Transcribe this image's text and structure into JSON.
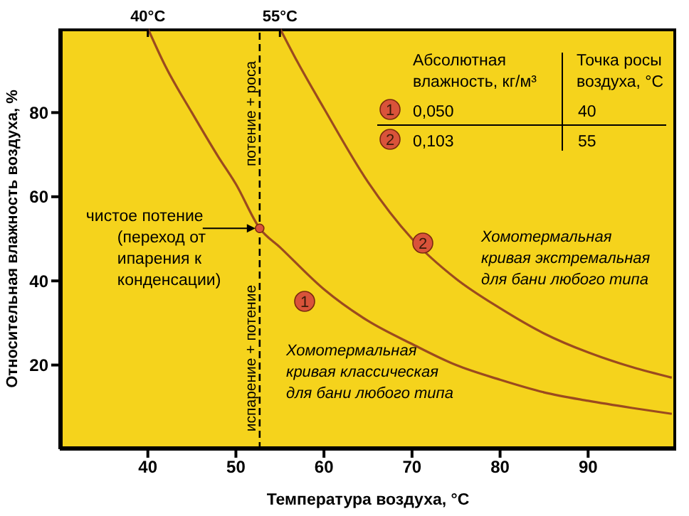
{
  "chart_data": {
    "type": "line",
    "xlabel": "Температура воздуха, °C",
    "ylabel": "Относительная влажность воздуха, %",
    "xlim": [
      30,
      100
    ],
    "xticks": [
      40,
      50,
      60,
      70,
      80,
      90
    ],
    "ylim": [
      0,
      100
    ],
    "yticks": [
      20,
      40,
      60,
      80
    ],
    "x2lim": [
      30,
      100
    ],
    "x2ticks": [
      {
        "value": 40,
        "label": "40°C"
      },
      {
        "value": 55,
        "label": "55°C"
      }
    ],
    "tick_labels": "xy",
    "series": [
      {
        "name": "Хомотермальная\nкривая классическая\nдля бани любого типа",
        "color": "#9b4a1f",
        "x": [
          40,
          42,
          45,
          48,
          50,
          52.7,
          55,
          60,
          65,
          70,
          75,
          80,
          85,
          90,
          95,
          99.5
        ],
        "values": [
          100,
          91,
          80,
          69.5,
          63,
          52.5,
          48,
          38,
          30.5,
          25,
          20,
          16.5,
          13.5,
          11.5,
          9.8,
          8.4
        ]
      },
      {
        "name": "Хомотермальная\nкривая экстремальная\nдля бани любого типа",
        "color": "#9b4a1f",
        "x": [
          55,
          57,
          60,
          65,
          70,
          75,
          80,
          85,
          90,
          95,
          99.5
        ],
        "values": [
          100,
          92,
          81,
          63.5,
          50,
          40.5,
          33.5,
          27.5,
          23,
          19.5,
          17
        ]
      }
    ],
    "ref_lines": [
      {
        "axis": "x",
        "value": 52.7,
        "label": "потение + роса",
        "line_style": "dashed",
        "color": "#000000"
      }
    ],
    "annotations": [
      {
        "text": "чистое потение\n(переход от\nипарения к\nконденсации)",
        "x": 52.7,
        "y": 52.5
      },
      "испарение + потение",
      "1",
      "2",
      "Абсолютная\nвлажность, кг/м³",
      "Точка росы\nвоздуха, °C",
      "1",
      "0,050",
      "40",
      "2",
      "0,103",
      "55"
    ],
    "marker": "none",
    "line_style": "solid"
  }
}
